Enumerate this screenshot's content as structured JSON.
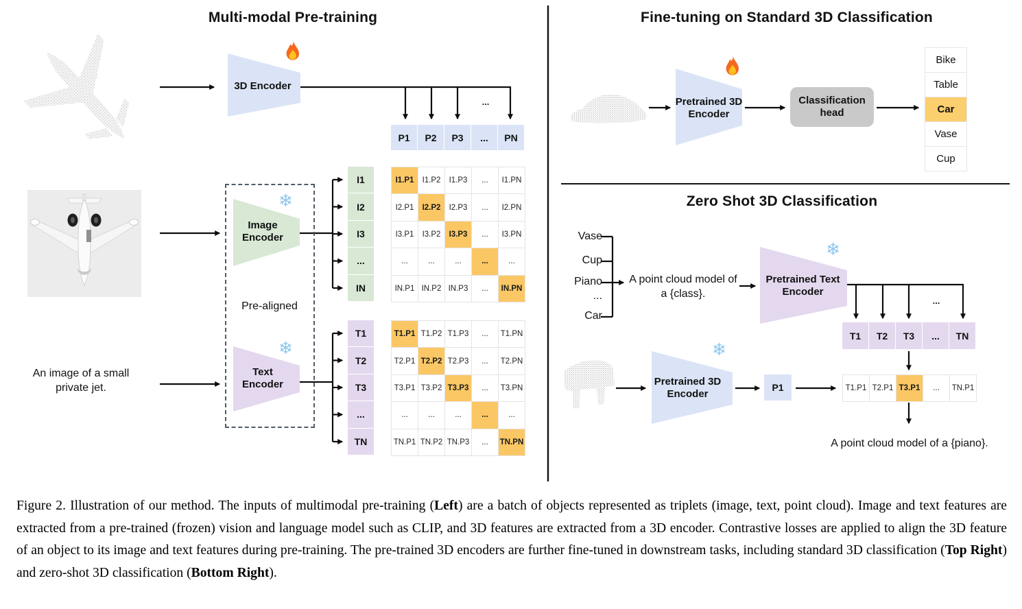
{
  "left": {
    "title": "Multi-modal Pre-training",
    "encoder3d_label": "3D Encoder",
    "image_encoder_label": "Image\nEncoder",
    "text_encoder_label": "Text\nEncoder",
    "prealigned_label": "Pre-aligned",
    "image_caption": "An image of a small\nprivate jet.",
    "dots": "...",
    "p_row": [
      "P1",
      "P2",
      "P3",
      "...",
      "PN"
    ],
    "i_labels": [
      "I1",
      "I2",
      "I3",
      "...",
      "IN"
    ],
    "t_labels": [
      "T1",
      "T2",
      "T3",
      "...",
      "TN"
    ],
    "i_matrix": {
      "rows": [
        [
          "I1.P1",
          "I1.P2",
          "I1.P3",
          "...",
          "I1.PN"
        ],
        [
          "I2.P1",
          "I2.P2",
          "I2.P3",
          "...",
          "I2.PN"
        ],
        [
          "I3.P1",
          "I3.P2",
          "I3.P3",
          "...",
          "I3.PN"
        ],
        [
          "...",
          "...",
          "...",
          "...",
          "..."
        ],
        [
          "IN.P1",
          "IN.P2",
          "IN.P3",
          "...",
          "IN.PN"
        ]
      ]
    },
    "t_matrix": {
      "rows": [
        [
          "T1.P1",
          "T1.P2",
          "T1.P3",
          "...",
          "T1.PN"
        ],
        [
          "T2.P1",
          "T2.P2",
          "T2.P3",
          "...",
          "T2.PN"
        ],
        [
          "T3.P1",
          "T3.P2",
          "T3.P3",
          "...",
          "T3.PN"
        ],
        [
          "...",
          "...",
          "...",
          "...",
          "..."
        ],
        [
          "TN.P1",
          "TN.P2",
          "TN.P3",
          "...",
          "TN.PN"
        ]
      ]
    }
  },
  "top_right": {
    "title": "Fine-tuning on Standard 3D Classification",
    "encoder_label": "Pretrained 3D\nEncoder",
    "head_label": "Classification\nhead",
    "classes": [
      "Bike",
      "Table",
      "Car",
      "Vase",
      "Cup"
    ],
    "highlighted_class": "Car"
  },
  "bottom_right": {
    "title": "Zero Shot 3D Classification",
    "class_words": [
      "Vase",
      "Cup",
      "Piano",
      "...",
      "Car"
    ],
    "prompt": "A point cloud model of\na {class}.",
    "text_encoder_label": "Pretrained Text\nEncoder",
    "encoder_label": "Pretrained 3D\nEncoder",
    "p1_label": "P1",
    "dots": "...",
    "t_row": [
      "T1",
      "T2",
      "T3",
      "...",
      "TN"
    ],
    "result_row": [
      "T1.P1",
      "T2.P1",
      "T3.P1",
      "...",
      "TN.P1"
    ],
    "highlighted_result_index": 2,
    "result_caption": "A point cloud model of a {piano}."
  },
  "icons": {
    "snowflake": "❄"
  },
  "colors": {
    "encoder_blue": "#dbe4f6",
    "encoder_green": "#d8e8d5",
    "encoder_purple": "#e4d8ee",
    "diagonal_highlight": "#fbc765",
    "class_highlight": "#fbce6e",
    "head_gray": "#c9c9c9"
  },
  "caption": {
    "segments": [
      {
        "text": "Figure 2. Illustration of our method. The inputs of multimodal pre-training (",
        "bold": false
      },
      {
        "text": "Left",
        "bold": true
      },
      {
        "text": ") are a batch of objects represented as triplets (image, text, point cloud). Image and text features are extracted from a pre-trained (frozen) vision and language model such as CLIP, and 3D features are extracted from a 3D encoder. Contrastive losses are applied to align the 3D feature of an object to its image and text features during pre-training. The pre-trained 3D encoders are further fine-tuned in downstream tasks, including standard 3D classification (",
        "bold": false
      },
      {
        "text": "Top Right",
        "bold": true
      },
      {
        "text": ") and zero-shot 3D classification (",
        "bold": false
      },
      {
        "text": "Bottom Right",
        "bold": true
      },
      {
        "text": ").",
        "bold": false
      }
    ]
  }
}
